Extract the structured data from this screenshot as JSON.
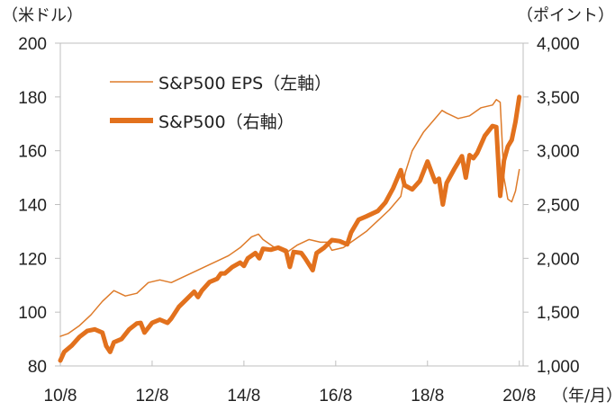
{
  "chart_data": {
    "type": "line",
    "title": "",
    "left_axis": {
      "unit_label": "（米ドル）",
      "min": 80,
      "max": 200,
      "ticks": [
        "80",
        "100",
        "120",
        "140",
        "160",
        "180",
        "200"
      ]
    },
    "right_axis": {
      "unit_label": "（ポイント）",
      "min": 1000,
      "max": 4000,
      "ticks": [
        "1,000",
        "1,500",
        "2,000",
        "2,500",
        "3,000",
        "3,500",
        "4,000"
      ]
    },
    "x_axis": {
      "unit_label": "（年/月）",
      "start": 2010.583,
      "end": 2020.667,
      "ticks": [
        {
          "x": 2010.583,
          "label": "10/8"
        },
        {
          "x": 2012.583,
          "label": "12/8"
        },
        {
          "x": 2014.583,
          "label": "14/8"
        },
        {
          "x": 2016.583,
          "label": "16/8"
        },
        {
          "x": 2018.583,
          "label": "18/8"
        },
        {
          "x": 2020.583,
          "label": "20/8"
        }
      ]
    },
    "colors": {
      "eps": "#de7b2a",
      "spx": "#e2711d",
      "frame": "#bfbfbf",
      "text": "#222222"
    },
    "legend": {
      "placement": "top-left"
    },
    "series": [
      {
        "name": "S&P500 EPS（左軸）",
        "axis": "left",
        "style": "thin",
        "points": [
          [
            2010.583,
            91
          ],
          [
            2010.75,
            92
          ],
          [
            2011.0,
            95
          ],
          [
            2011.25,
            99
          ],
          [
            2011.5,
            104
          ],
          [
            2011.75,
            108
          ],
          [
            2012.0,
            106
          ],
          [
            2012.25,
            107
          ],
          [
            2012.5,
            111
          ],
          [
            2012.75,
            112
          ],
          [
            2013.0,
            111
          ],
          [
            2013.25,
            113
          ],
          [
            2013.5,
            115
          ],
          [
            2013.75,
            117
          ],
          [
            2014.0,
            119
          ],
          [
            2014.25,
            121
          ],
          [
            2014.5,
            124
          ],
          [
            2014.75,
            128
          ],
          [
            2014.9,
            129
          ],
          [
            2015.0,
            127
          ],
          [
            2015.25,
            124
          ],
          [
            2015.5,
            122
          ],
          [
            2015.75,
            125
          ],
          [
            2016.0,
            127
          ],
          [
            2016.25,
            126
          ],
          [
            2016.4,
            126
          ],
          [
            2016.5,
            123
          ],
          [
            2016.75,
            124
          ],
          [
            2017.0,
            127
          ],
          [
            2017.25,
            130
          ],
          [
            2017.5,
            134
          ],
          [
            2017.75,
            138
          ],
          [
            2018.0,
            143
          ],
          [
            2018.1,
            152
          ],
          [
            2018.25,
            160
          ],
          [
            2018.5,
            167
          ],
          [
            2018.75,
            172
          ],
          [
            2018.9,
            175
          ],
          [
            2019.0,
            174
          ],
          [
            2019.25,
            172
          ],
          [
            2019.5,
            173
          ],
          [
            2019.75,
            176
          ],
          [
            2020.0,
            177
          ],
          [
            2020.083,
            179
          ],
          [
            2020.167,
            178
          ],
          [
            2020.25,
            150
          ],
          [
            2020.333,
            142
          ],
          [
            2020.417,
            141
          ],
          [
            2020.5,
            145
          ],
          [
            2020.583,
            153
          ]
        ]
      },
      {
        "name": "S&P500（右軸）",
        "axis": "right",
        "style": "thick",
        "points": [
          [
            2010.583,
            1050
          ],
          [
            2010.667,
            1130
          ],
          [
            2010.833,
            1190
          ],
          [
            2011.0,
            1270
          ],
          [
            2011.167,
            1325
          ],
          [
            2011.333,
            1340
          ],
          [
            2011.5,
            1310
          ],
          [
            2011.583,
            1185
          ],
          [
            2011.667,
            1130
          ],
          [
            2011.75,
            1220
          ],
          [
            2011.917,
            1250
          ],
          [
            2012.083,
            1340
          ],
          [
            2012.25,
            1395
          ],
          [
            2012.333,
            1400
          ],
          [
            2012.417,
            1310
          ],
          [
            2012.583,
            1400
          ],
          [
            2012.75,
            1430
          ],
          [
            2012.917,
            1400
          ],
          [
            2013.0,
            1440
          ],
          [
            2013.167,
            1550
          ],
          [
            2013.333,
            1620
          ],
          [
            2013.5,
            1690
          ],
          [
            2013.583,
            1640
          ],
          [
            2013.667,
            1700
          ],
          [
            2013.833,
            1780
          ],
          [
            2014.0,
            1810
          ],
          [
            2014.083,
            1860
          ],
          [
            2014.167,
            1860
          ],
          [
            2014.333,
            1920
          ],
          [
            2014.5,
            1960
          ],
          [
            2014.583,
            1930
          ],
          [
            2014.667,
            2000
          ],
          [
            2014.833,
            2050
          ],
          [
            2014.917,
            2000
          ],
          [
            2015.0,
            2090
          ],
          [
            2015.167,
            2080
          ],
          [
            2015.333,
            2100
          ],
          [
            2015.5,
            2070
          ],
          [
            2015.583,
            1920
          ],
          [
            2015.667,
            2060
          ],
          [
            2015.833,
            2050
          ],
          [
            2015.917,
            2000
          ],
          [
            2016.083,
            1890
          ],
          [
            2016.167,
            2050
          ],
          [
            2016.333,
            2100
          ],
          [
            2016.5,
            2170
          ],
          [
            2016.667,
            2160
          ],
          [
            2016.833,
            2130
          ],
          [
            2016.917,
            2240
          ],
          [
            2017.083,
            2360
          ],
          [
            2017.25,
            2390
          ],
          [
            2017.5,
            2440
          ],
          [
            2017.667,
            2520
          ],
          [
            2017.833,
            2650
          ],
          [
            2018.0,
            2820
          ],
          [
            2018.083,
            2680
          ],
          [
            2018.25,
            2640
          ],
          [
            2018.417,
            2720
          ],
          [
            2018.583,
            2900
          ],
          [
            2018.75,
            2710
          ],
          [
            2018.833,
            2740
          ],
          [
            2018.917,
            2500
          ],
          [
            2019.0,
            2700
          ],
          [
            2019.167,
            2830
          ],
          [
            2019.333,
            2950
          ],
          [
            2019.417,
            2750
          ],
          [
            2019.5,
            2960
          ],
          [
            2019.583,
            2930
          ],
          [
            2019.667,
            2980
          ],
          [
            2019.833,
            3140
          ],
          [
            2020.0,
            3230
          ],
          [
            2020.083,
            3220
          ],
          [
            2020.167,
            2580
          ],
          [
            2020.25,
            2910
          ],
          [
            2020.333,
            3040
          ],
          [
            2020.417,
            3100
          ],
          [
            2020.5,
            3270
          ],
          [
            2020.583,
            3500
          ]
        ]
      }
    ]
  }
}
